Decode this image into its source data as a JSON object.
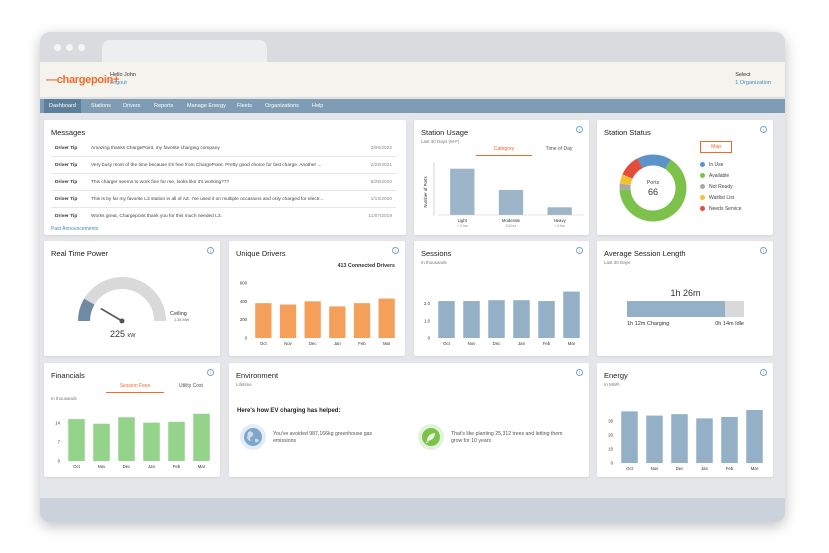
{
  "header": {
    "logo": "chargepoin+",
    "greeting": "Hello John",
    "logout": "Logout",
    "select": "Select",
    "organization": "1 Organization"
  },
  "nav": [
    "Dashboard",
    "Stations",
    "Drivers",
    "Reports",
    "Manage Energy",
    "Fleets",
    "Organizations",
    "Help"
  ],
  "messages": {
    "title": "Messages",
    "rows": [
      {
        "type": "Driver Tip",
        "text": "Amazing thanks ChargePoint, my favorite charging company",
        "date": "3/05/2022"
      },
      {
        "type": "Driver Tip",
        "text": "Very busy most of the time because it's free from ChargePoint. Pretty good choice for fast charge. Another ...",
        "date": "2/28/2021"
      },
      {
        "type": "Driver Tip",
        "text": "This charger seems to work fine for me, looks like it's working???",
        "date": "8/26/2020"
      },
      {
        "type": "Driver Tip",
        "text": "This is by far my favorite L3 station in all of AZ. I've used it on multiple occasions and only charged for electr...",
        "date": "1/15/2020"
      },
      {
        "type": "Driver Tip",
        "text": "Works great, Chargepoint thank you for this much needed L3.",
        "date": "11/07/2019"
      }
    ],
    "past_link": "Past Announcements"
  },
  "station_usage": {
    "title": "Station Usage",
    "subtitle": "Last 30 Days (M-F)",
    "tab_category": "Category",
    "tab_time": "Time of Day",
    "ylabel": "Number of Ports"
  },
  "station_status": {
    "title": "Station Status",
    "map_button": "Map",
    "center_label": "Ports",
    "center_value": "66",
    "legend": [
      {
        "label": "In Use",
        "color": "#5b93c8"
      },
      {
        "label": "Available",
        "color": "#7cc24a"
      },
      {
        "label": "Not Ready",
        "color": "#a9a9a9"
      },
      {
        "label": "Waitlist List",
        "color": "#f2c230"
      },
      {
        "label": "Needs Service",
        "color": "#e54c3c"
      }
    ]
  },
  "real_time_power": {
    "title": "Real Time Power",
    "value": "225",
    "unit": "kW",
    "ceiling_label": "Ceiling",
    "ceiling_value": "1.35 MW",
    "fraction": 0.17
  },
  "unique_drivers": {
    "title": "Unique Drivers",
    "note": "413 Connected Drivers"
  },
  "sessions": {
    "title": "Sessions",
    "subtitle": "In thousands"
  },
  "avg_session": {
    "title": "Average Session Length",
    "subtitle": "Last 30 Days",
    "total": "1h 26m",
    "charging": "1h 12m Charging",
    "idle": "0h 14m Idle",
    "charging_fraction": 0.84
  },
  "financials": {
    "title": "Financials",
    "tab_fees": "Session Fees",
    "tab_cost": "Utility Cost",
    "subtitle": "In thousands"
  },
  "environment": {
    "title": "Environment",
    "subtitle": "Lifetime",
    "heading": "Here's how EV charging has helped:",
    "fact1": "You've avoided 987,166kg greenhouse gas emissions",
    "fact2": "That's like planting 25,312 trees and letting them grow for 10 years"
  },
  "energy": {
    "title": "Energy",
    "subtitle": "In MWh"
  },
  "chart_data": [
    {
      "id": "station_usage",
      "type": "bar",
      "categories": [
        "Light",
        "Moderate",
        "Heavy"
      ],
      "category_notes": [
        "< 3 hrs",
        "3-6 hrs",
        "> 6 hrs"
      ],
      "values": [
        24,
        13,
        4
      ],
      "ylim": [
        0,
        28
      ],
      "ylabel": "Number of Ports",
      "color": "#9db5c9"
    },
    {
      "id": "unique_drivers",
      "type": "bar",
      "categories": [
        "Oct",
        "Nov",
        "Dec",
        "Jan",
        "Feb",
        "Mar"
      ],
      "values": [
        380,
        365,
        400,
        345,
        380,
        430
      ],
      "yticks": [
        "0",
        "200",
        "400",
        "600"
      ],
      "ylim": [
        0,
        600
      ],
      "color": "#f5a05a"
    },
    {
      "id": "sessions",
      "type": "bar",
      "categories": [
        "Oct",
        "Nov",
        "Dec",
        "Jan",
        "Feb",
        "Mar"
      ],
      "values": [
        2.15,
        2.15,
        2.2,
        2.2,
        2.15,
        2.7
      ],
      "yticks": [
        "0",
        "1.0",
        "2.0"
      ],
      "ylim": [
        0,
        3.2
      ],
      "color": "#94b0c6"
    },
    {
      "id": "financials",
      "type": "bar",
      "categories": [
        "Oct",
        "Nov",
        "Dec",
        "Jan",
        "Feb",
        "Mar"
      ],
      "values": [
        15.5,
        13.8,
        16.2,
        14.2,
        14.5,
        17.5
      ],
      "yticks": [
        "0",
        "7",
        "14"
      ],
      "ylim": [
        0,
        20
      ],
      "color": "#93d38a"
    },
    {
      "id": "energy",
      "type": "bar",
      "categories": [
        "Oct",
        "Nov",
        "Dec",
        "Jan",
        "Feb",
        "Mar"
      ],
      "values": [
        37,
        34,
        35,
        32,
        33,
        38
      ],
      "yticks": [
        "0",
        "10",
        "20",
        "30"
      ],
      "ylim": [
        0,
        43
      ],
      "color": "#94b0c6"
    },
    {
      "id": "station_status",
      "type": "pie",
      "labels": [
        "In Use",
        "Available",
        "Not Ready",
        "Waitlist List",
        "Needs Service"
      ],
      "values": [
        11,
        43,
        2,
        3,
        7
      ]
    }
  ]
}
